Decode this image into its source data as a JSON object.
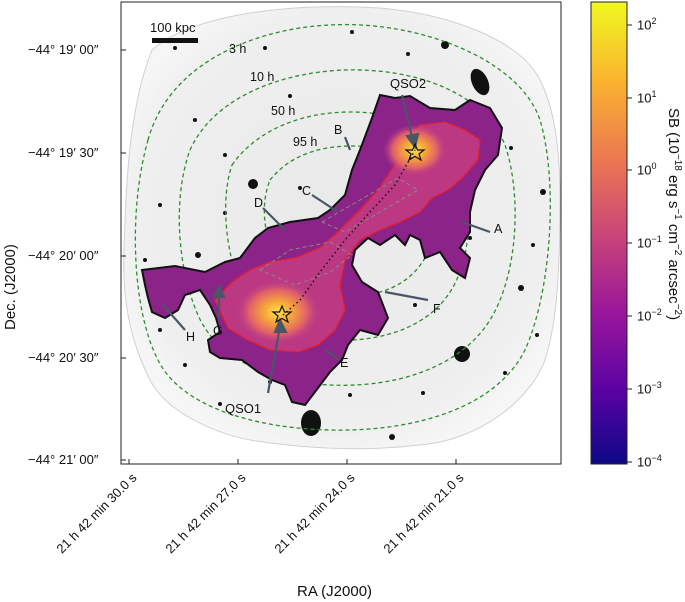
{
  "figure": {
    "dec_ticks": [
      "−44° 19′ 00″",
      "−44° 19′ 30″",
      "−44° 20′ 00″",
      "−44° 20′ 30″",
      "−44° 21′ 00″"
    ],
    "ra_ticks": [
      "21 h 42 min 30.0 s",
      "21 h 42 min 27.0 s",
      "21 h 42 min 24.0 s",
      "21 h 42 min 21.0 s"
    ],
    "ylabel": "Dec. (J2000)",
    "xlabel": "RA (J2000)",
    "scale_bar_label": "100 kpc",
    "contour_labels": [
      "3 h",
      "10 h",
      "50 h",
      "95 h"
    ],
    "region_labels": [
      "A",
      "B",
      "C",
      "D",
      "E",
      "F",
      "G",
      "H"
    ],
    "quasar_labels": [
      "QSO1",
      "QSO2"
    ],
    "colorbar": {
      "label_main": "SB (10",
      "label_exp1": "−18",
      "label_mid": " erg s",
      "label_exp2": "−1",
      "label_mid2": " cm",
      "label_exp3": "−2",
      "label_mid3": " arcsec",
      "label_exp4": "−2",
      "label_end": ")",
      "tick_base": "10",
      "tick_exponents": [
        "2",
        "1",
        "0",
        "−1",
        "−2",
        "−3",
        "−4"
      ],
      "colors": [
        "#0d0887",
        "#5b02a3",
        "#9a179b",
        "#cb4678",
        "#eb7852",
        "#fbb32f",
        "#f0f921"
      ]
    },
    "colors": {
      "contour_green": "#2e8b2e",
      "nebula_outer": "#7a1a7a",
      "nebula_mid": "#c23b7a",
      "nebula_core": "#f6a33a",
      "red_contour": "#e8202a",
      "arrow": "#4a5566"
    }
  }
}
